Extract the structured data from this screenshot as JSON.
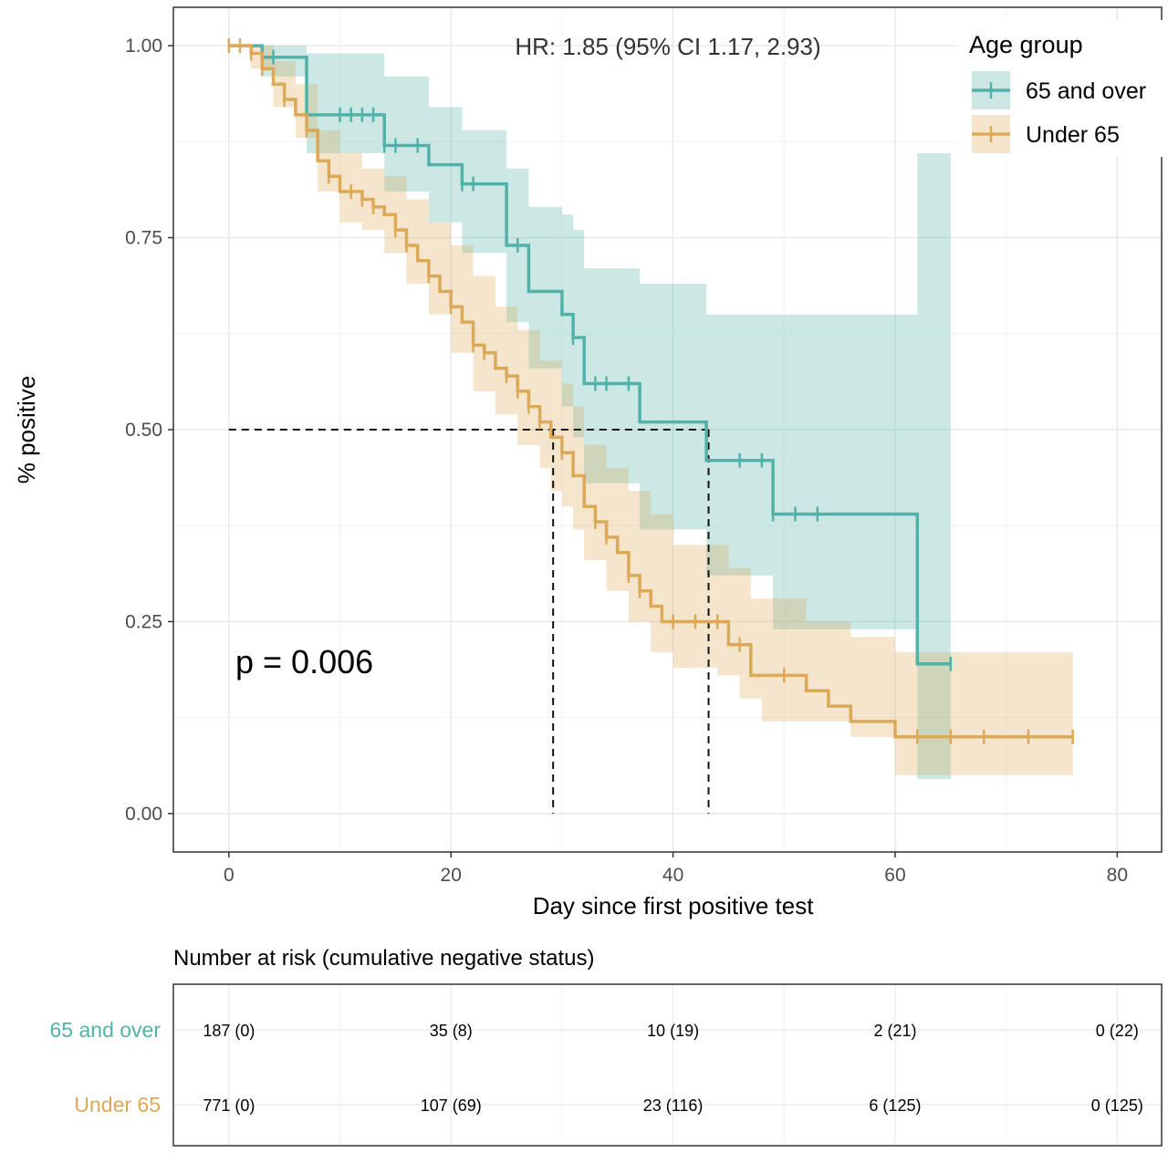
{
  "chart_data": {
    "type": "line",
    "subtype": "kaplan-meier",
    "annotation_hr": "HR: 1.85 (95% CI 1.17, 2.93)",
    "annotation_p": "p = 0.006",
    "xlabel": "Day since first positive test",
    "ylabel": "% positive",
    "xlim": [
      -5,
      84
    ],
    "ylim": [
      -0.05,
      1.05
    ],
    "x_ticks": [
      0,
      20,
      40,
      60,
      80
    ],
    "x_tick_labels": [
      "0",
      "20",
      "40",
      "60",
      "80"
    ],
    "y_ticks": [
      0,
      0.25,
      0.5,
      0.75,
      1.0
    ],
    "y_tick_labels": [
      "0.00",
      "0.25",
      "0.50",
      "0.75",
      "1.00"
    ],
    "grid": true,
    "legend": {
      "title": "Age group",
      "position": "top-right"
    },
    "median_reference": {
      "y": 0.5,
      "x_values": [
        29.2,
        43.2
      ]
    },
    "series": [
      {
        "name": "65 and over",
        "color": "#52b2aa",
        "ci_color": "#c9e6e4",
        "steps": [
          [
            0,
            1.0
          ],
          [
            3,
            0.985
          ],
          [
            7,
            0.91
          ],
          [
            14,
            0.87
          ],
          [
            18,
            0.845
          ],
          [
            21,
            0.82
          ],
          [
            25,
            0.74
          ],
          [
            27,
            0.68
          ],
          [
            30,
            0.65
          ],
          [
            31,
            0.62
          ],
          [
            32,
            0.56
          ],
          [
            37,
            0.51
          ],
          [
            43,
            0.46
          ],
          [
            49,
            0.39
          ],
          [
            62,
            0.195
          ],
          [
            65,
            0.195
          ]
        ],
        "ci_lower": [
          [
            0,
            1.0
          ],
          [
            3,
            0.96
          ],
          [
            7,
            0.86
          ],
          [
            14,
            0.81
          ],
          [
            18,
            0.77
          ],
          [
            21,
            0.73
          ],
          [
            25,
            0.64
          ],
          [
            27,
            0.58
          ],
          [
            30,
            0.53
          ],
          [
            31,
            0.49
          ],
          [
            32,
            0.43
          ],
          [
            37,
            0.37
          ],
          [
            43,
            0.31
          ],
          [
            49,
            0.24
          ],
          [
            62,
            0.045
          ],
          [
            65,
            0.045
          ]
        ],
        "ci_upper": [
          [
            0,
            1.0
          ],
          [
            3,
            1.0
          ],
          [
            7,
            0.99
          ],
          [
            14,
            0.96
          ],
          [
            18,
            0.92
          ],
          [
            21,
            0.89
          ],
          [
            25,
            0.84
          ],
          [
            27,
            0.79
          ],
          [
            30,
            0.78
          ],
          [
            31,
            0.76
          ],
          [
            32,
            0.71
          ],
          [
            37,
            0.69
          ],
          [
            43,
            0.65
          ],
          [
            49,
            0.65
          ],
          [
            62,
            0.86
          ],
          [
            65,
            0.86
          ]
        ],
        "censor_x": [
          3,
          4,
          10,
          11,
          12,
          13,
          14,
          15,
          17,
          21,
          22,
          26,
          31,
          33,
          34,
          36,
          46,
          48,
          49,
          51,
          53,
          65
        ]
      },
      {
        "name": "Under 65",
        "color": "#dba957",
        "ci_color": "#efe1c0",
        "steps": [
          [
            0,
            1.0
          ],
          [
            2,
            0.99
          ],
          [
            3,
            0.97
          ],
          [
            4,
            0.95
          ],
          [
            5,
            0.93
          ],
          [
            6,
            0.91
          ],
          [
            7,
            0.89
          ],
          [
            8,
            0.85
          ],
          [
            9,
            0.83
          ],
          [
            10,
            0.81
          ],
          [
            12,
            0.8
          ],
          [
            13,
            0.79
          ],
          [
            14,
            0.78
          ],
          [
            15,
            0.76
          ],
          [
            16,
            0.74
          ],
          [
            17,
            0.72
          ],
          [
            18,
            0.7
          ],
          [
            19,
            0.68
          ],
          [
            20,
            0.66
          ],
          [
            21,
            0.64
          ],
          [
            22,
            0.61
          ],
          [
            23,
            0.6
          ],
          [
            24,
            0.58
          ],
          [
            25,
            0.57
          ],
          [
            26,
            0.55
          ],
          [
            27,
            0.53
          ],
          [
            28,
            0.51
          ],
          [
            29,
            0.49
          ],
          [
            30,
            0.47
          ],
          [
            31,
            0.44
          ],
          [
            32,
            0.4
          ],
          [
            33,
            0.38
          ],
          [
            34,
            0.36
          ],
          [
            35,
            0.34
          ],
          [
            36,
            0.31
          ],
          [
            37,
            0.29
          ],
          [
            38,
            0.27
          ],
          [
            39,
            0.25
          ],
          [
            44,
            0.25
          ],
          [
            45,
            0.22
          ],
          [
            47,
            0.18
          ],
          [
            52,
            0.16
          ],
          [
            54,
            0.14
          ],
          [
            56,
            0.12
          ],
          [
            60,
            0.1
          ],
          [
            76,
            0.1
          ]
        ],
        "ci_lower": [
          [
            0,
            1.0
          ],
          [
            2,
            0.97
          ],
          [
            4,
            0.92
          ],
          [
            6,
            0.88
          ],
          [
            8,
            0.81
          ],
          [
            10,
            0.77
          ],
          [
            12,
            0.76
          ],
          [
            14,
            0.73
          ],
          [
            16,
            0.69
          ],
          [
            18,
            0.65
          ],
          [
            20,
            0.6
          ],
          [
            22,
            0.55
          ],
          [
            24,
            0.52
          ],
          [
            26,
            0.48
          ],
          [
            28,
            0.45
          ],
          [
            29,
            0.42
          ],
          [
            30,
            0.4
          ],
          [
            31,
            0.37
          ],
          [
            32,
            0.33
          ],
          [
            34,
            0.29
          ],
          [
            36,
            0.25
          ],
          [
            38,
            0.21
          ],
          [
            40,
            0.19
          ],
          [
            44,
            0.18
          ],
          [
            46,
            0.15
          ],
          [
            48,
            0.12
          ],
          [
            56,
            0.1
          ],
          [
            60,
            0.05
          ],
          [
            76,
            0.05
          ]
        ],
        "ci_upper": [
          [
            0,
            1.0
          ],
          [
            2,
            1.0
          ],
          [
            4,
            0.98
          ],
          [
            6,
            0.95
          ],
          [
            8,
            0.89
          ],
          [
            10,
            0.86
          ],
          [
            12,
            0.84
          ],
          [
            14,
            0.83
          ],
          [
            16,
            0.8
          ],
          [
            18,
            0.77
          ],
          [
            20,
            0.74
          ],
          [
            22,
            0.7
          ],
          [
            24,
            0.66
          ],
          [
            26,
            0.63
          ],
          [
            28,
            0.59
          ],
          [
            30,
            0.56
          ],
          [
            31,
            0.53
          ],
          [
            32,
            0.48
          ],
          [
            34,
            0.45
          ],
          [
            36,
            0.42
          ],
          [
            38,
            0.39
          ],
          [
            40,
            0.35
          ],
          [
            43,
            0.35
          ],
          [
            45,
            0.32
          ],
          [
            47,
            0.28
          ],
          [
            49,
            0.28
          ],
          [
            52,
            0.25
          ],
          [
            56,
            0.23
          ],
          [
            60,
            0.21
          ],
          [
            76,
            0.21
          ]
        ],
        "censor_x": [
          0,
          1,
          2,
          3,
          5,
          7,
          9,
          11,
          12,
          13,
          15,
          16,
          18,
          20,
          22,
          23,
          25,
          26,
          27,
          28,
          30,
          33,
          34,
          36,
          37,
          40,
          42,
          44,
          46,
          50,
          62,
          65,
          68,
          72,
          76
        ]
      }
    ],
    "risk_table": {
      "title": "Number at risk (cumulative negative status)",
      "x": [
        0,
        20,
        40,
        60,
        80
      ],
      "rows": [
        {
          "label": "65 and over",
          "color": "#52b2aa",
          "values": [
            "187 (0)",
            "35 (8)",
            "10 (19)",
            "2 (21)",
            "0 (22)"
          ]
        },
        {
          "label": "Under 65",
          "color": "#dba957",
          "values": [
            "771 (0)",
            "107 (69)",
            "23 (116)",
            "6 (125)",
            "0 (125)"
          ]
        }
      ]
    }
  }
}
